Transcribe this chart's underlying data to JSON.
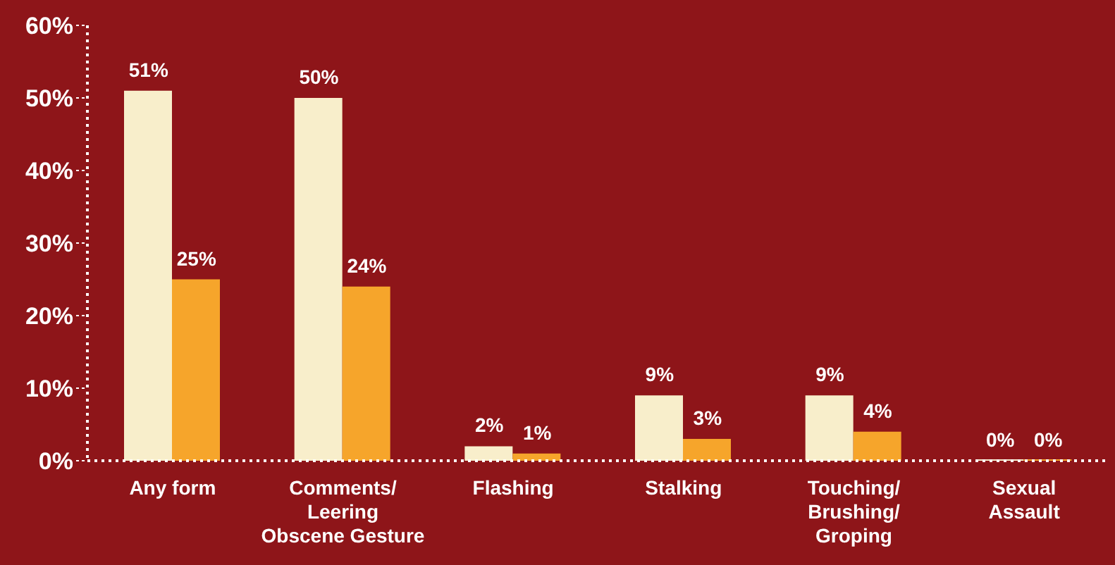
{
  "chart_data": {
    "type": "bar",
    "categories": [
      "Any form",
      "Comments/\nLeering\nObscene Gesture",
      "Flashing",
      "Stalking",
      "Touching/\nBrushing/\nGroping",
      "Sexual\nAssault"
    ],
    "series": [
      {
        "color": "#f8eecb",
        "values": [
          51,
          50,
          2,
          9,
          9,
          0
        ],
        "value_labels": [
          "51%",
          "50%",
          "2%",
          "9%",
          "9%",
          "0%"
        ]
      },
      {
        "color": "#f6a52b",
        "values": [
          25,
          24,
          1,
          3,
          4,
          0
        ],
        "value_labels": [
          "25%",
          "24%",
          "1%",
          "3%",
          "4%",
          "0%"
        ]
      }
    ],
    "ylim": [
      0,
      60
    ],
    "yticks": [
      {
        "value": 0,
        "label": "0%"
      },
      {
        "value": 10,
        "label": "10%"
      },
      {
        "value": 20,
        "label": "20%"
      },
      {
        "value": 30,
        "label": "30%"
      },
      {
        "value": 40,
        "label": "40%"
      },
      {
        "value": 50,
        "label": "50%"
      },
      {
        "value": 60,
        "label": "60%"
      }
    ],
    "grid": false,
    "legend": false
  }
}
